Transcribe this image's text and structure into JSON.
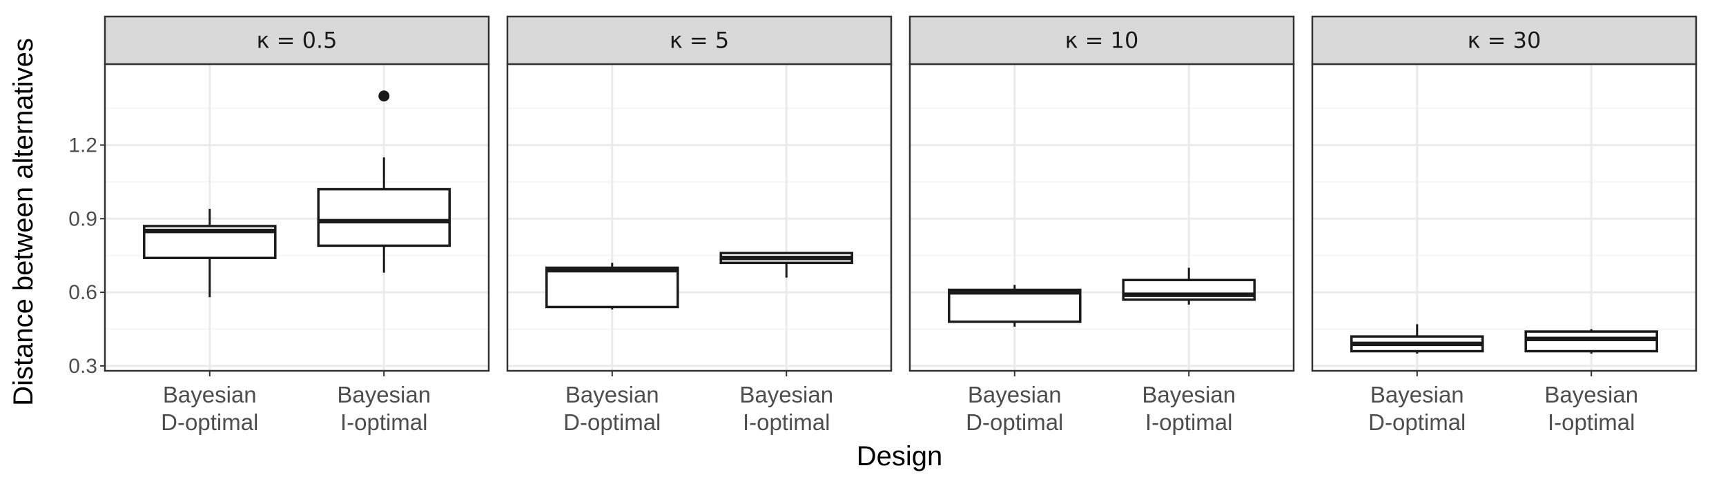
{
  "chart_data": {
    "type": "box",
    "xlabel": "Design",
    "ylabel": "Distance between alternatives",
    "ylim": [
      0.28,
      1.53
    ],
    "y_ticks": [
      "0.3",
      "0.6",
      "0.9",
      "1.2"
    ],
    "y_tick_values": [
      0.3,
      0.6,
      0.9,
      1.2
    ],
    "y_minor_values": [
      0.45,
      0.75,
      1.05,
      1.35
    ],
    "grid": true,
    "categories": [
      [
        "Bayesian",
        "D-optimal"
      ],
      [
        "Bayesian",
        "I-optimal"
      ]
    ],
    "panels": [
      {
        "label": "κ = 0.5",
        "boxes": [
          {
            "category": "Bayesian D-optimal",
            "whisker_low": 0.58,
            "q1": 0.74,
            "median": 0.85,
            "q3": 0.87,
            "whisker_high": 0.94,
            "outliers": []
          },
          {
            "category": "Bayesian I-optimal",
            "whisker_low": 0.68,
            "q1": 0.79,
            "median": 0.89,
            "q3": 1.02,
            "whisker_high": 1.15,
            "outliers": [
              1.4
            ]
          }
        ]
      },
      {
        "label": "κ = 5",
        "boxes": [
          {
            "category": "Bayesian D-optimal",
            "whisker_low": 0.53,
            "q1": 0.54,
            "median": 0.69,
            "q3": 0.7,
            "whisker_high": 0.72,
            "outliers": []
          },
          {
            "category": "Bayesian I-optimal",
            "whisker_low": 0.66,
            "q1": 0.72,
            "median": 0.74,
            "q3": 0.76,
            "whisker_high": 0.76,
            "outliers": []
          }
        ]
      },
      {
        "label": "κ = 10",
        "boxes": [
          {
            "category": "Bayesian D-optimal",
            "whisker_low": 0.46,
            "q1": 0.48,
            "median": 0.6,
            "q3": 0.61,
            "whisker_high": 0.63,
            "outliers": []
          },
          {
            "category": "Bayesian I-optimal",
            "whisker_low": 0.55,
            "q1": 0.57,
            "median": 0.59,
            "q3": 0.65,
            "whisker_high": 0.7,
            "outliers": []
          }
        ]
      },
      {
        "label": "κ = 30",
        "boxes": [
          {
            "category": "Bayesian D-optimal",
            "whisker_low": 0.35,
            "q1": 0.36,
            "median": 0.39,
            "q3": 0.42,
            "whisker_high": 0.47,
            "outliers": []
          },
          {
            "category": "Bayesian I-optimal",
            "whisker_low": 0.35,
            "q1": 0.36,
            "median": 0.41,
            "q3": 0.44,
            "whisker_high": 0.45,
            "outliers": []
          }
        ]
      }
    ],
    "colors": {
      "strip_fill": "#d9d9d9",
      "panel_border": "#333333",
      "grid_major": "#ebebeb",
      "grid_minor": "#f5f5f5",
      "box_line": "#1a1a1a",
      "box_fill": "#ffffff"
    }
  }
}
